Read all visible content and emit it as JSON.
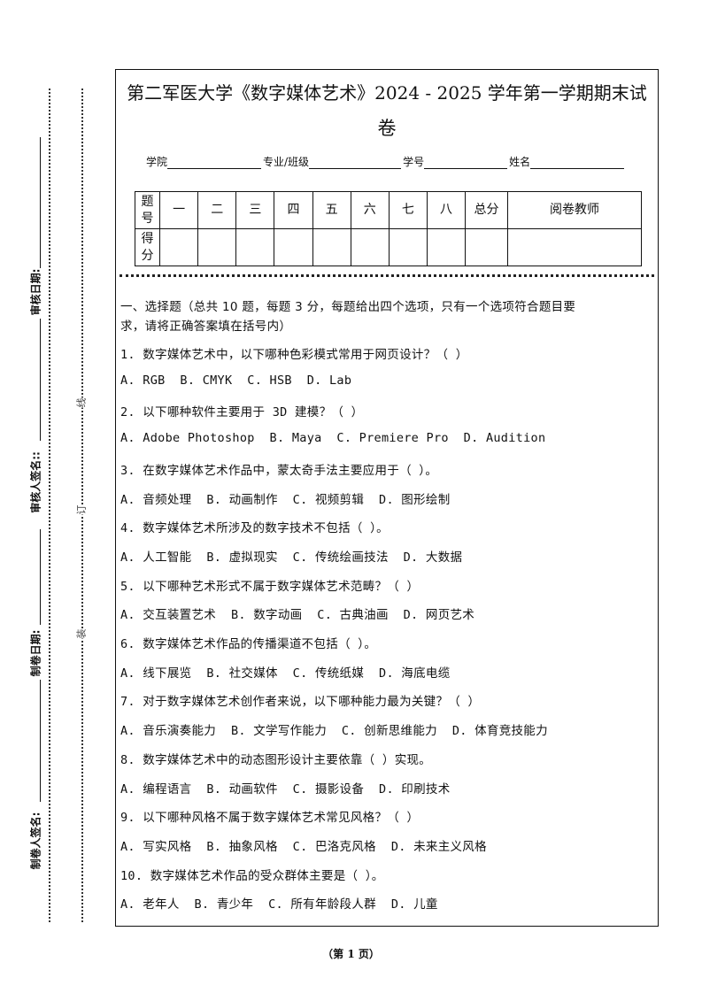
{
  "margin": {
    "labels": [
      "审核日期:",
      "审核人签名::",
      "制卷日期:",
      "制卷人签名:"
    ],
    "binding_marks": [
      "线",
      "订",
      "装"
    ]
  },
  "header": {
    "title_line1": "第二军医大学《数字媒体艺术》2024 - 2025 学年第一学期期末试",
    "title_line2": "卷",
    "fields": [
      "学院",
      "专业/班级",
      "学号",
      "姓名"
    ]
  },
  "score_table": {
    "row1_label": "题号",
    "columns": [
      "一",
      "二",
      "三",
      "四",
      "五",
      "六",
      "七",
      "八",
      "总分",
      "阅卷教师"
    ],
    "row2_label": "得分"
  },
  "section": {
    "heading_line1": "一、选择题（总共 10 题，每题 3 分，每题给出四个选项，只有一个选项符合题目要",
    "heading_line2": "求，请将正确答案填在括号内）"
  },
  "questions": [
    {
      "q": "1. 数字媒体艺术中，以下哪种色彩模式常用于网页设计？（  ）",
      "options": "A. RGB  B. CMYK  C. HSB  D. Lab"
    },
    {
      "q": "2. 以下哪种软件主要用于 3D 建模？（  ）",
      "options": "A. Adobe Photoshop  B. Maya  C. Premiere Pro  D. Audition"
    },
    {
      "q": "3. 在数字媒体艺术作品中，蒙太奇手法主要应用于（  ）。",
      "options": "A. 音频处理  B. 动画制作  C. 视频剪辑  D. 图形绘制"
    },
    {
      "q": "4. 数字媒体艺术所涉及的数字技术不包括（  ）。",
      "options": "A. 人工智能  B. 虚拟现实  C. 传统绘画技法  D. 大数据"
    },
    {
      "q": "5. 以下哪种艺术形式不属于数字媒体艺术范畴？（  ）",
      "options": "A. 交互装置艺术  B. 数字动画  C. 古典油画  D. 网页艺术"
    },
    {
      "q": "6. 数字媒体艺术作品的传播渠道不包括（  ）。",
      "options": "A. 线下展览  B. 社交媒体  C. 传统纸媒  D. 海底电缆"
    },
    {
      "q": "7. 对于数字媒体艺术创作者来说，以下哪种能力最为关键？（  ）",
      "options": "A. 音乐演奏能力  B. 文学写作能力  C. 创新思维能力  D. 体育竞技能力"
    },
    {
      "q": "8. 数字媒体艺术中的动态图形设计主要依靠（  ）实现。",
      "options": "A. 编程语言  B. 动画软件  C. 摄影设备  D. 印刷技术"
    },
    {
      "q": "9. 以下哪种风格不属于数字媒体艺术常见风格？（  ）",
      "options": "A. 写实风格  B. 抽象风格  C. 巴洛克风格  D. 未来主义风格"
    },
    {
      "q": "10. 数字媒体艺术作品的受众群体主要是（  ）。",
      "options": "A. 老年人  B. 青少年  C. 所有年龄段人群  D. 儿童"
    }
  ],
  "footer": {
    "page": "（第 1 页）"
  }
}
